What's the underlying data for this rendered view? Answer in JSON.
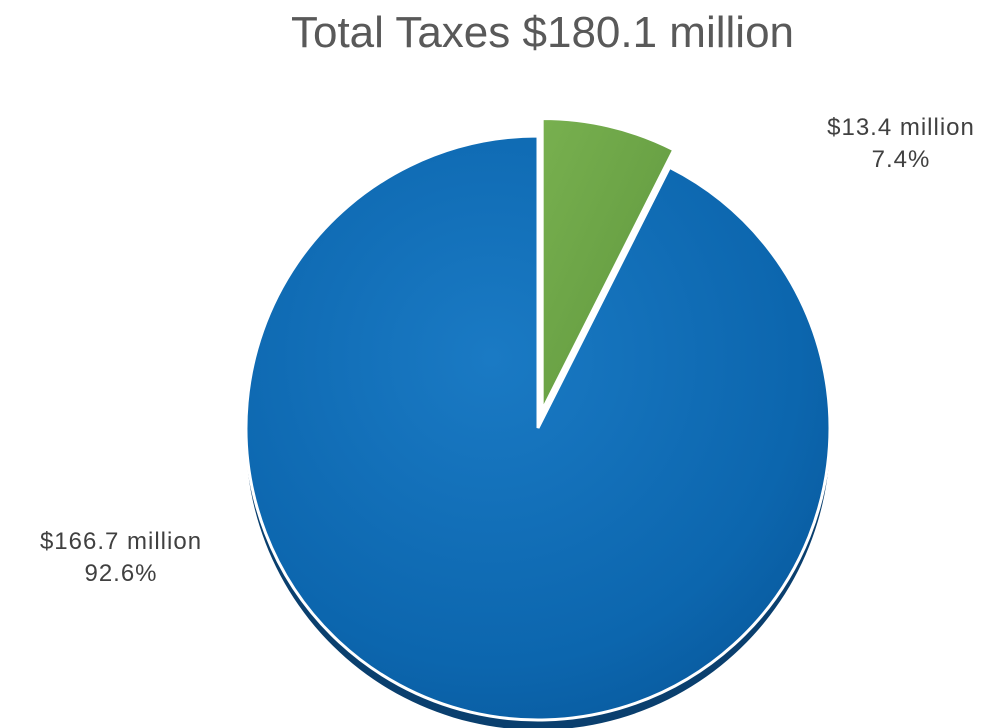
{
  "chart_data": {
    "type": "pie",
    "title": "Total Taxes $180.1 million",
    "slices": [
      {
        "value": 166.7,
        "percent": 92.6,
        "value_label": "$166.7 million",
        "percent_label": "92.6%",
        "color": "#0f6ab4",
        "exploded": false
      },
      {
        "value": 13.4,
        "percent": 7.4,
        "value_label": "$13.4 million",
        "percent_label": "7.4%",
        "color": "#6fa84a",
        "exploded": true
      }
    ],
    "start": "12 o'clock",
    "direction": "clockwise",
    "legend": "none"
  }
}
